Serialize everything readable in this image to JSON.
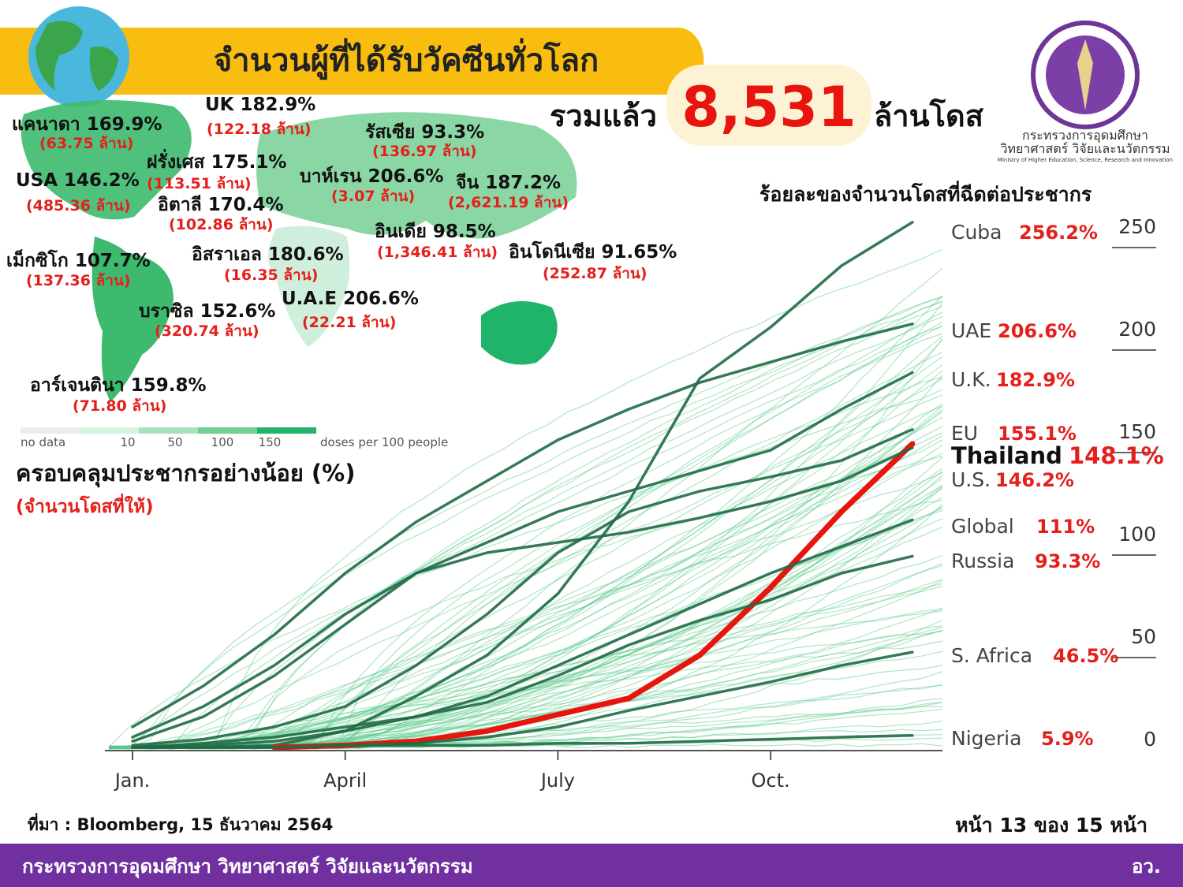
{
  "header": {
    "title": "จำนวนผู้ที่ได้รับวัคซีนทั่วโลก",
    "total_prefix": "รวมแล้ว",
    "total": "8,531",
    "total_suffix": "ล้านโดส"
  },
  "logo": {
    "line1": "กระทรวงการอุดมศึกษา",
    "line2": "วิทยาศาสตร์ วิจัยและนวัตกรรม",
    "line3": "Ministry of Higher Education, Science, Research and Innovation"
  },
  "map": {
    "labels": [
      {
        "country": "แคนาดา 169.9%",
        "doses": "(63.75 ล้าน)"
      },
      {
        "country": "UK 182.9%",
        "doses": "(122.18 ล้าน)"
      },
      {
        "country": "รัสเซีย 93.3%",
        "doses": "(136.97 ล้าน)"
      },
      {
        "country": "ฝรั่งเศส 175.1%",
        "doses": "(113.51 ล้าน)"
      },
      {
        "country": "USA 146.2%",
        "doses": "(485.36 ล้าน)"
      },
      {
        "country": "บาห์เรน 206.6%",
        "doses": "(3.07 ล้าน)"
      },
      {
        "country": "จีน 187.2%",
        "doses": "(2,621.19 ล้าน)"
      },
      {
        "country": "อิตาลี 170.4%",
        "doses": "(102.86 ล้าน)"
      },
      {
        "country": "อินเดีย 98.5%",
        "doses": "(1,346.41 ล้าน)"
      },
      {
        "country": "อิสราเอล 180.6%",
        "doses": "(16.35 ล้าน)"
      },
      {
        "country": "อินโดนีเซีย 91.65%",
        "doses": "(252.87 ล้าน)"
      },
      {
        "country": "เม็กซิโก 107.7%",
        "doses": "(137.36 ล้าน)"
      },
      {
        "country": "U.A.E 206.6%",
        "doses": "(22.21 ล้าน)"
      },
      {
        "country": "บราซิล 152.6%",
        "doses": "(320.74 ล้าน)"
      },
      {
        "country": "อาร์เจนตินา 159.8%",
        "doses": "(71.80 ล้าน)"
      }
    ],
    "legend": {
      "no_data": "no data",
      "steps": [
        "10",
        "50",
        "100",
        "150"
      ],
      "unit": "doses per 100 people"
    },
    "coverage_title": "ครอบคลุมประชากรอย่างน้อย (%)",
    "coverage_note": "(จำนวนโดสที่ให้)"
  },
  "chart_data": {
    "type": "line",
    "title": "ร้อยละของจำนวนโดสที่ฉีดต่อประชากร",
    "categories": [
      "Jan.",
      null,
      null,
      "April",
      null,
      null,
      "July",
      null,
      null,
      "Oct.",
      null,
      null
    ],
    "ylim": [
      0,
      260
    ],
    "yticks": [
      0,
      50,
      100,
      150,
      200,
      250
    ],
    "series": [
      {
        "name": "Cuba",
        "color": "#1e6b45",
        "values": [
          0,
          0,
          1,
          8,
          25,
          45,
          75,
          120,
          180,
          205,
          235,
          256.2
        ],
        "value_labels": [
          null,
          null,
          null,
          null,
          null,
          null,
          null,
          null,
          null,
          null,
          null,
          "256.2%"
        ]
      },
      {
        "name": "UAE",
        "color": "#1e6b45",
        "values": [
          10,
          30,
          55,
          85,
          110,
          130,
          150,
          165,
          178,
          188,
          198,
          206.6
        ],
        "value_labels": [
          null,
          null,
          null,
          null,
          null,
          null,
          null,
          null,
          null,
          null,
          null,
          "206.6%"
        ]
      },
      {
        "name": "U.K.",
        "color": "#1e6b45",
        "values": [
          5,
          20,
          40,
          65,
          85,
          100,
          115,
          125,
          135,
          145,
          165,
          182.9
        ],
        "value_labels": [
          null,
          null,
          null,
          null,
          null,
          null,
          null,
          null,
          null,
          null,
          null,
          "182.9%"
        ]
      },
      {
        "name": "EU",
        "color": "#1e6b45",
        "values": [
          1,
          4,
          10,
          20,
          40,
          65,
          95,
          115,
          125,
          132,
          140,
          155.1
        ],
        "value_labels": [
          null,
          null,
          null,
          null,
          null,
          null,
          null,
          null,
          null,
          null,
          null,
          "155.1%"
        ]
      },
      {
        "name": "Thailand",
        "color": "#e8150f",
        "values": [
          null,
          null,
          0,
          1,
          3,
          8,
          16,
          24,
          45,
          78,
          115,
          148.1
        ],
        "value_labels": [
          null,
          null,
          null,
          null,
          null,
          null,
          null,
          null,
          null,
          null,
          null,
          "148.1%"
        ]
      },
      {
        "name": "U.S.",
        "color": "#1e6b45",
        "values": [
          3,
          15,
          35,
          60,
          85,
          95,
          100,
          105,
          112,
          120,
          130,
          146.2
        ],
        "value_labels": [
          null,
          null,
          null,
          null,
          null,
          null,
          null,
          null,
          null,
          null,
          null,
          "146.2%"
        ]
      },
      {
        "name": "Global",
        "color": "#1e6b45",
        "values": [
          0,
          1,
          3,
          8,
          15,
          25,
          40,
          55,
          70,
          85,
          98,
          111
        ],
        "value_labels": [
          null,
          null,
          null,
          null,
          null,
          null,
          null,
          null,
          null,
          null,
          null,
          "111%"
        ]
      },
      {
        "name": "Russia",
        "color": "#1e6b45",
        "values": [
          0,
          2,
          5,
          10,
          15,
          22,
          35,
          50,
          62,
          72,
          85,
          93.3
        ],
        "value_labels": [
          null,
          null,
          null,
          null,
          null,
          null,
          null,
          null,
          null,
          null,
          null,
          "93.3%"
        ]
      },
      {
        "name": "S. Africa",
        "color": "#1e6b45",
        "values": [
          0,
          0,
          0,
          1,
          2,
          5,
          10,
          18,
          25,
          32,
          40,
          46.5
        ],
        "value_labels": [
          null,
          null,
          null,
          null,
          null,
          null,
          null,
          null,
          null,
          null,
          null,
          "46.5%"
        ]
      },
      {
        "name": "Nigeria",
        "color": "#1e6b45",
        "values": [
          0,
          0,
          0,
          1,
          1,
          1,
          2,
          2,
          3,
          4,
          5,
          5.9
        ],
        "value_labels": [
          null,
          null,
          null,
          null,
          null,
          null,
          null,
          null,
          null,
          null,
          null,
          "5.9%"
        ]
      }
    ]
  },
  "footer": {
    "source": "ที่มา : Bloomberg, 15 ธันวาคม 2564",
    "page": "หน้า 13 ของ 15 หน้า",
    "ministry": "กระทรวงการอุดมศึกษา วิทยาศาสตร์ วิจัยและนวัตกรรม",
    "abbr": "อว."
  }
}
